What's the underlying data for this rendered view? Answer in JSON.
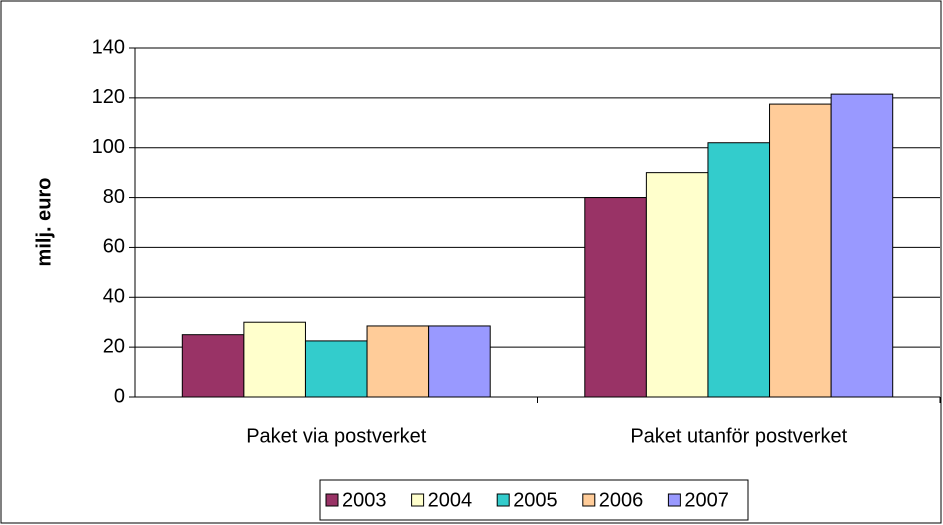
{
  "chart_data": {
    "type": "bar",
    "ylabel": "milj. euro",
    "categories": [
      "Paket via postverket",
      "Paket utanför postverket"
    ],
    "series": [
      {
        "name": "2003",
        "color": "#993366",
        "values": [
          25,
          80
        ]
      },
      {
        "name": "2004",
        "color": "#ffffcc",
        "values": [
          30,
          90
        ]
      },
      {
        "name": "2005",
        "color": "#33cccc",
        "values": [
          22.5,
          102
        ]
      },
      {
        "name": "2006",
        "color": "#ffcc99",
        "values": [
          28.5,
          117.5
        ]
      },
      {
        "name": "2007",
        "color": "#9999ff",
        "values": [
          28.5,
          121.5
        ]
      }
    ],
    "ylim": [
      0,
      140
    ],
    "yticks": [
      0,
      20,
      40,
      60,
      80,
      100,
      120,
      140
    ],
    "grid": true,
    "legend": "bottom"
  }
}
